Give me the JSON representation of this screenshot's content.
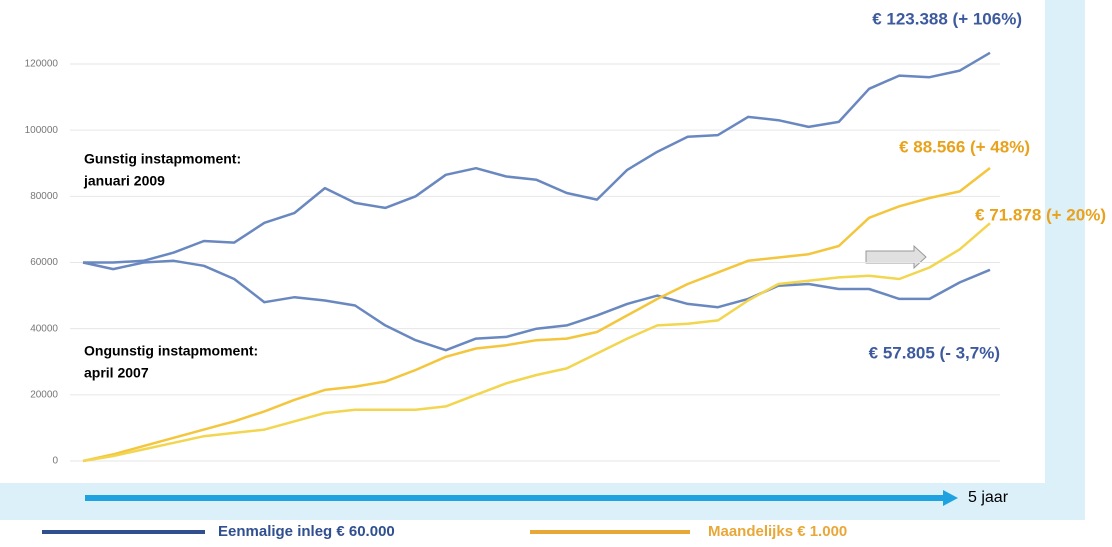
{
  "chart_data": {
    "type": "line",
    "categories": [
      null,
      null,
      null,
      null,
      null,
      null,
      null,
      null,
      null,
      null,
      null,
      null,
      null,
      null,
      null,
      null,
      null,
      null,
      null,
      null,
      null,
      null,
      null,
      null,
      null,
      null,
      null,
      null,
      null,
      null,
      null
    ],
    "series": [
      {
        "color": "#6a88c0",
        "values": [
          60000,
          60000,
          60500,
          63000,
          66500,
          66000,
          72000,
          75000,
          82500,
          78000,
          76500,
          80000,
          86500,
          88500,
          86000,
          85000,
          81000,
          79000,
          88000,
          93500,
          98000,
          98500,
          104000,
          103000,
          101000,
          102500,
          112500,
          116500,
          116000,
          118000,
          123388
        ]
      },
      {
        "color": "#6a88c0",
        "values": [
          60000,
          58000,
          60000,
          60500,
          59000,
          55000,
          48000,
          49500,
          48500,
          47000,
          41000,
          36500,
          33500,
          37000,
          37500,
          40000,
          41000,
          44000,
          47500,
          50000,
          47500,
          46500,
          49000,
          53000,
          53500,
          52000,
          52000,
          49000,
          49000,
          54000,
          57805
        ]
      },
      {
        "color": "#f4c63d",
        "values": [
          0,
          2000,
          4500,
          7000,
          9500,
          12000,
          15000,
          18500,
          21500,
          22500,
          24000,
          27500,
          31500,
          34000,
          35000,
          36500,
          37000,
          39000,
          44000,
          49000,
          53500,
          57000,
          60500,
          61500,
          62500,
          65000,
          73500,
          77000,
          79500,
          81500,
          88566
        ]
      },
      {
        "color": "#f2d64f",
        "values": [
          0,
          1500,
          3500,
          5500,
          7500,
          8500,
          9500,
          12000,
          14500,
          15500,
          15500,
          15500,
          16500,
          20000,
          23500,
          26000,
          28000,
          32500,
          37000,
          41000,
          41500,
          42500,
          48500,
          53500,
          54500,
          55500,
          56000,
          55000,
          58500,
          64000,
          71878
        ]
      }
    ],
    "ylim": [
      0,
      120000
    ],
    "yticks": [
      0,
      20000,
      40000,
      60000,
      80000,
      100000,
      120000
    ],
    "grid": true,
    "annotations": [
      {
        "lines": [
          "Gunstig instapmoment:",
          "januari 2009"
        ]
      },
      {
        "lines": [
          "Ongunstig instapmoment:",
          "april 2007"
        ]
      }
    ],
    "end_labels": [
      {
        "text": "€ 123.388 (+ 106%)",
        "color": "#3d5a9e"
      },
      {
        "text": "€ 88.566 (+ 48%)",
        "color": "#e8a21c"
      },
      {
        "text": "€ 71.878 (+ 20%)",
        "color": "#e8a21c"
      },
      {
        "text": "€ 57.805 (- 3,7%)",
        "color": "#3d5a9e"
      }
    ],
    "x_axis_label": "5 jaar",
    "legend": [
      {
        "name": "Eenmalige inleg € 60.000",
        "color": "#2f4f8f"
      },
      {
        "name": "Maandelijks € 1.000",
        "color": "#e8a838"
      }
    ]
  }
}
